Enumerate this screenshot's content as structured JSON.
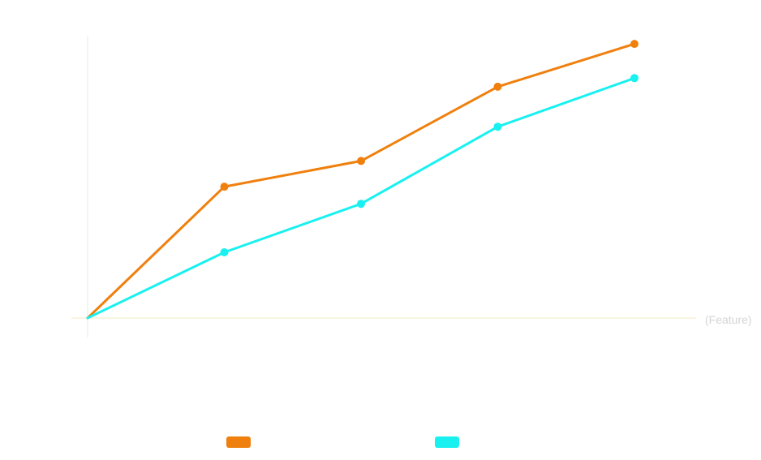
{
  "chart_data": {
    "type": "line",
    "title": "",
    "xlabel": "(Feature)",
    "ylabel": "",
    "x": [
      0,
      1,
      2,
      3,
      4
    ],
    "xlim": [
      0,
      4
    ],
    "ylim": [
      0,
      100
    ],
    "grid": false,
    "legend_position": "bottom",
    "series": [
      {
        "color": "#f0800e",
        "values": [
          0,
          46,
          55,
          81,
          96
        ]
      },
      {
        "color": "#19f0f0",
        "values": [
          0,
          23,
          40,
          67,
          84
        ]
      }
    ]
  },
  "colors": {
    "axis": "#e8e8e8",
    "baseline": "#f0e8bf",
    "label": "#d5d5d5"
  }
}
